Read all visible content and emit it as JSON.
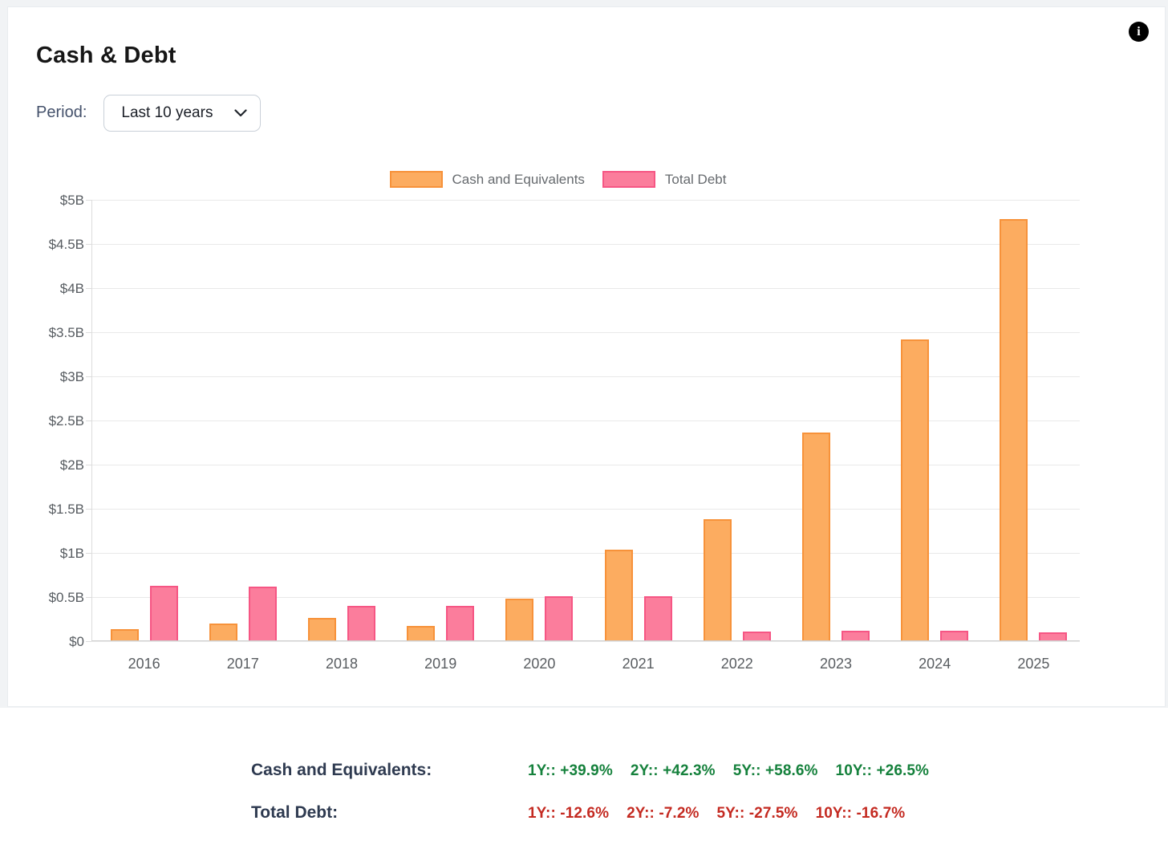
{
  "card": {
    "title": "Cash & Debt",
    "period_label": "Period:",
    "period_value": "Last 10 years",
    "info_icon_glyph": "i"
  },
  "chart_data": {
    "type": "bar",
    "title": "",
    "xlabel": "",
    "ylabel": "",
    "ylim": [
      0,
      5
    ],
    "grid": true,
    "legend_position": "top",
    "categories": [
      "2016",
      "2017",
      "2018",
      "2019",
      "2020",
      "2021",
      "2022",
      "2023",
      "2024",
      "2025"
    ],
    "series": [
      {
        "name": "Cash and Equivalents",
        "color": "#fcac60",
        "border_color": "#f7923a",
        "values": [
          0.14,
          0.2,
          0.26,
          0.17,
          0.48,
          1.04,
          1.38,
          2.36,
          3.42,
          4.78
        ]
      },
      {
        "name": "Total Debt",
        "color": "#fb7d9c",
        "border_color": "#f65684",
        "values": [
          0.63,
          0.62,
          0.4,
          0.4,
          0.51,
          0.51,
          0.11,
          0.12,
          0.12,
          0.1
        ]
      }
    ],
    "yticks": [
      {
        "value": 0,
        "label": "$0"
      },
      {
        "value": 0.5,
        "label": "$0.5B"
      },
      {
        "value": 1,
        "label": "$1B"
      },
      {
        "value": 1.5,
        "label": "$1.5B"
      },
      {
        "value": 2,
        "label": "$2B"
      },
      {
        "value": 2.5,
        "label": "$2.5B"
      },
      {
        "value": 3,
        "label": "$3B"
      },
      {
        "value": 3.5,
        "label": "$3.5B"
      },
      {
        "value": 4,
        "label": "$4B"
      },
      {
        "value": 4.5,
        "label": "$4.5B"
      },
      {
        "value": 5,
        "label": "$5B"
      }
    ]
  },
  "stats": {
    "rows": [
      {
        "label": "Cash and Equivalents:",
        "color": "#15813c",
        "items": [
          "1Y:: +39.9%",
          "2Y:: +42.3%",
          "5Y:: +58.6%",
          "10Y:: +26.5%"
        ]
      },
      {
        "label": "Total Debt:",
        "color": "#c42a21",
        "items": [
          "1Y:: -12.6%",
          "2Y:: -7.2%",
          "5Y:: -27.5%",
          "10Y:: -16.7%"
        ]
      }
    ]
  }
}
